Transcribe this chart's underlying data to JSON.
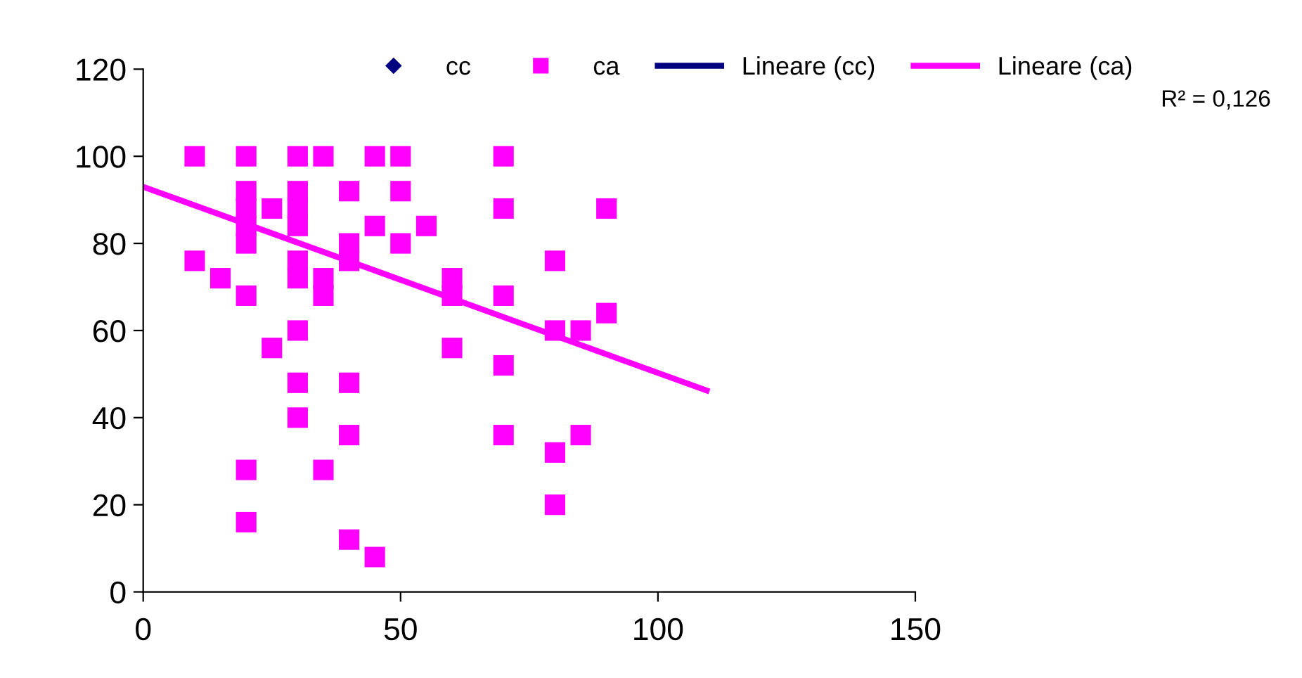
{
  "chart_data": {
    "type": "scatter",
    "xlim": [
      0,
      150
    ],
    "ylim": [
      0,
      120
    ],
    "xticks": [
      0,
      50,
      100,
      150
    ],
    "yticks": [
      0,
      20,
      40,
      60,
      80,
      100,
      120
    ],
    "grid": false,
    "legend": "top",
    "annotations": [
      "R² = 0,126"
    ],
    "series": [
      {
        "name": "cc",
        "marker": "diamond",
        "color": "#000080"
      },
      {
        "name": "ca",
        "marker": "square",
        "color": "#ff00ff",
        "x": [
          10,
          10,
          15,
          20,
          20,
          20,
          20,
          20,
          20,
          20,
          20,
          25,
          25,
          30,
          30,
          30,
          30,
          30,
          30,
          30,
          30,
          30,
          35,
          35,
          35,
          35,
          40,
          40,
          40,
          40,
          40,
          40,
          45,
          45,
          45,
          50,
          50,
          50,
          55,
          60,
          60,
          60,
          70,
          70,
          70,
          70,
          70,
          80,
          80,
          80,
          80,
          85,
          85,
          90,
          90
        ],
        "values": [
          100,
          76,
          72,
          100,
          92,
          88,
          84,
          80,
          68,
          28,
          16,
          88,
          56,
          100,
          92,
          88,
          84,
          76,
          72,
          60,
          48,
          40,
          100,
          72,
          68,
          28,
          92,
          80,
          76,
          48,
          36,
          12,
          100,
          84,
          8,
          100,
          92,
          80,
          84,
          72,
          68,
          56,
          100,
          88,
          68,
          52,
          36,
          76,
          60,
          32,
          20,
          60,
          36,
          88,
          64
        ]
      },
      {
        "name": "Lineare (cc)",
        "type": "line",
        "marker": "none",
        "color": "#000080"
      },
      {
        "name": "Lineare (ca)",
        "type": "line",
        "marker": "none",
        "color": "#ff00ff",
        "x": [
          0,
          110
        ],
        "values": [
          93,
          46
        ]
      }
    ]
  }
}
